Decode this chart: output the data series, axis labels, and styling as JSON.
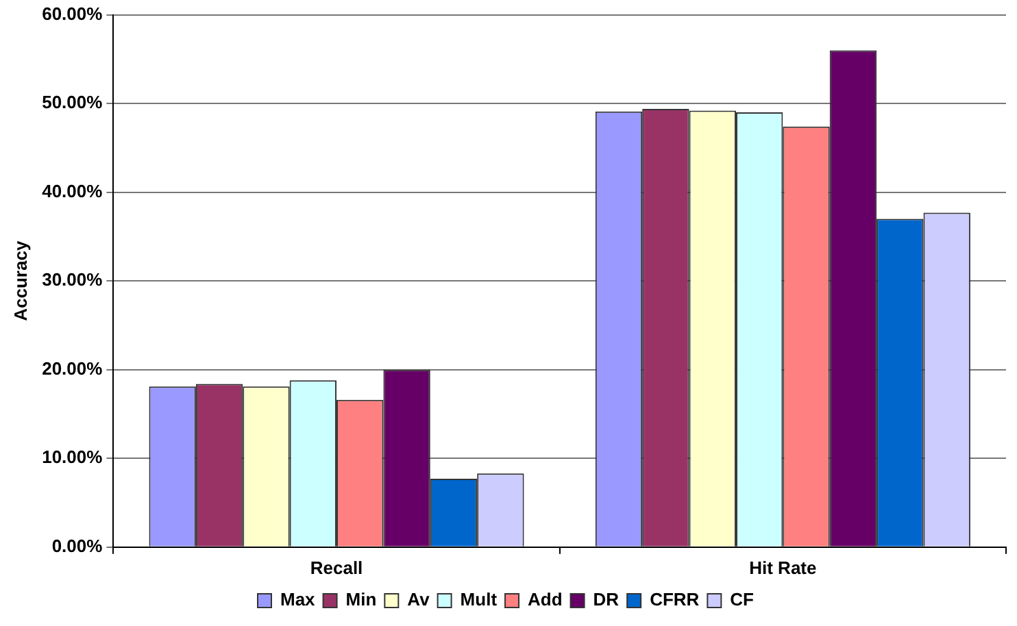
{
  "chart_data": {
    "type": "bar",
    "ylabel": "Accuracy",
    "categories": [
      "Recall",
      "Hit Rate"
    ],
    "series": [
      {
        "name": "Max",
        "color": "#9999ff",
        "values": [
          18.1,
          49.1
        ]
      },
      {
        "name": "Min",
        "color": "#993366",
        "values": [
          18.4,
          49.4
        ]
      },
      {
        "name": "Av",
        "color": "#ffffcc",
        "values": [
          18.1,
          49.2
        ]
      },
      {
        "name": "Mult",
        "color": "#ccffff",
        "values": [
          18.8,
          49.0
        ]
      },
      {
        "name": "Add",
        "color": "#ff8080",
        "values": [
          16.6,
          47.4
        ]
      },
      {
        "name": "DR",
        "color": "#660066",
        "values": [
          20.0,
          56.0
        ]
      },
      {
        "name": "CFRR",
        "color": "#0066cc",
        "values": [
          7.7,
          37.0
        ]
      },
      {
        "name": "CF",
        "color": "#ccccff",
        "values": [
          8.3,
          37.7
        ]
      }
    ],
    "ylim": [
      0,
      60
    ],
    "yticks": [
      {
        "value": 0,
        "label": "0.00%"
      },
      {
        "value": 10,
        "label": "10.00%"
      },
      {
        "value": 20,
        "label": "20.00%"
      },
      {
        "value": 30,
        "label": "30.00%"
      },
      {
        "value": 40,
        "label": "40.00%"
      },
      {
        "value": 50,
        "label": "50.00%"
      },
      {
        "value": 60,
        "label": "60.00%"
      }
    ],
    "grid": "y",
    "legend": "bottom"
  }
}
